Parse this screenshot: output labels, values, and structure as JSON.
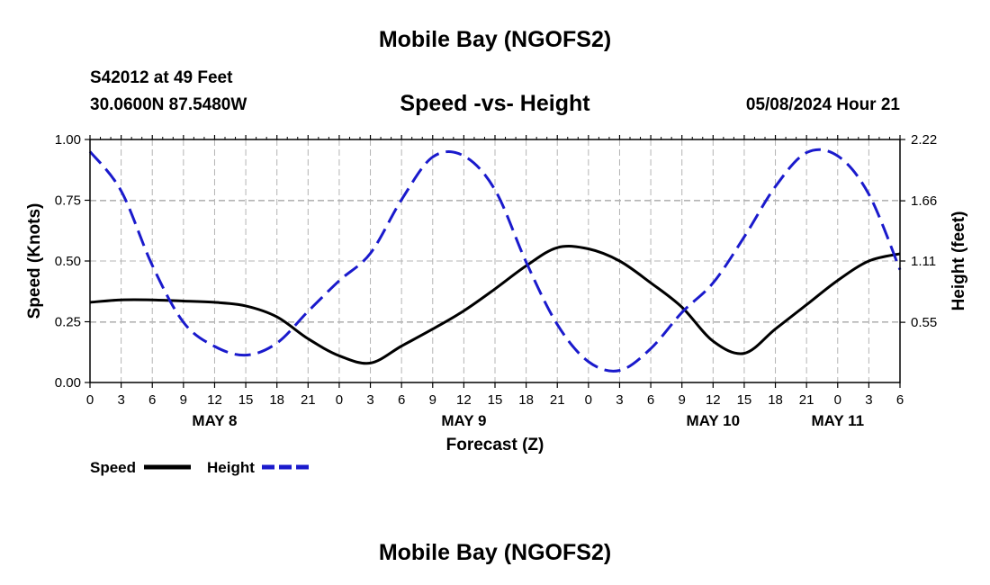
{
  "page": {
    "title_top": "Mobile Bay (NGOFS2)",
    "title_bottom": "Mobile Bay (NGOFS2)",
    "station": "S42012 at 49 Feet",
    "coords": "30.0600N  87.5480W",
    "chart_title": "Speed -vs- Height",
    "datetime": "05/08/2024 Hour 21"
  },
  "legend": {
    "speed_label": "Speed",
    "height_label": "Height"
  },
  "colors": {
    "speed": "#000000",
    "height": "#1a1acc",
    "grid": "#b4b4b4"
  },
  "chart_data": {
    "type": "line",
    "title": "Speed -vs- Height",
    "xlabel": "Forecast (Z)",
    "ylabel": "Speed (Knots)",
    "y2label": "Height (feet)",
    "xlim": [
      0,
      78
    ],
    "ylim": [
      0,
      1.0
    ],
    "y2lim": [
      0,
      2.22
    ],
    "x_tick_labels": [
      "0",
      "3",
      "6",
      "9",
      "12",
      "15",
      "18",
      "21",
      "0",
      "3",
      "6",
      "9",
      "12",
      "15",
      "18",
      "21",
      "0",
      "3",
      "6",
      "9",
      "12",
      "15",
      "18",
      "21",
      "0",
      "3",
      "6"
    ],
    "x_ticks": [
      0,
      3,
      6,
      9,
      12,
      15,
      18,
      21,
      24,
      27,
      30,
      33,
      36,
      39,
      42,
      45,
      48,
      51,
      54,
      57,
      60,
      63,
      66,
      69,
      72,
      75,
      78
    ],
    "y_ticks": [
      0.0,
      0.25,
      0.5,
      0.75,
      1.0
    ],
    "y_tick_labels": [
      "0.00",
      "0.25",
      "0.50",
      "0.75",
      "1.00"
    ],
    "y2_ticks": [
      0.55,
      1.11,
      1.66,
      2.22
    ],
    "y2_tick_labels": [
      "0.55",
      "1.11",
      "1.66",
      "2.22"
    ],
    "day_labels": [
      {
        "label": "MAY 8",
        "x": 12
      },
      {
        "label": "MAY 9",
        "x": 36
      },
      {
        "label": "MAY 10",
        "x": 60
      },
      {
        "label": "MAY 11",
        "x": 72
      }
    ],
    "grid": true,
    "legend_position": "bottom-left",
    "series": [
      {
        "name": "Speed",
        "axis": "left",
        "style": "solid",
        "x": [
          0,
          3,
          6,
          9,
          12,
          15,
          18,
          21,
          24,
          27,
          30,
          33,
          36,
          39,
          42,
          45,
          48,
          51,
          54,
          57,
          60,
          63,
          66,
          69,
          72,
          75,
          78
        ],
        "values": [
          0.33,
          0.34,
          0.34,
          0.335,
          0.33,
          0.315,
          0.27,
          0.18,
          0.11,
          0.08,
          0.15,
          0.22,
          0.295,
          0.385,
          0.48,
          0.555,
          0.55,
          0.5,
          0.41,
          0.31,
          0.17,
          0.12,
          0.22,
          0.32,
          0.42,
          0.5,
          0.53
        ]
      },
      {
        "name": "Height",
        "axis": "right",
        "style": "dashed",
        "x": [
          0,
          3,
          6,
          9,
          12,
          15,
          18,
          21,
          24,
          27,
          30,
          33,
          36,
          39,
          42,
          45,
          48,
          51,
          54,
          57,
          60,
          63,
          66,
          69,
          72,
          75,
          78
        ],
        "values": [
          2.11,
          1.75,
          1.07,
          0.55,
          0.33,
          0.25,
          0.36,
          0.65,
          0.93,
          1.18,
          1.67,
          2.06,
          2.07,
          1.76,
          1.1,
          0.53,
          0.19,
          0.11,
          0.31,
          0.64,
          0.91,
          1.33,
          1.79,
          2.1,
          2.07,
          1.72,
          1.03
        ]
      }
    ]
  }
}
